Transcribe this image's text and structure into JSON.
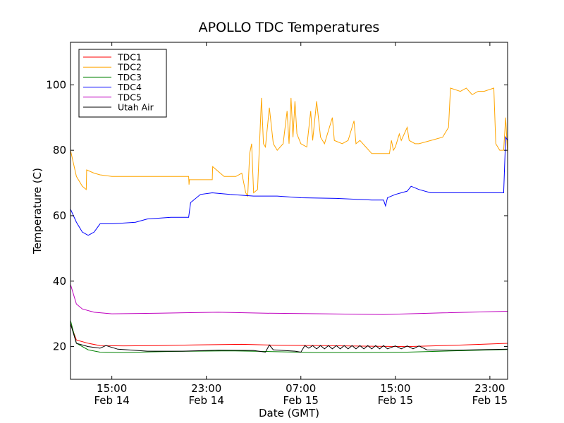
{
  "chart_data": {
    "type": "line",
    "title": "APOLLO TDC Temperatures",
    "xlabel": "Date (GMT)",
    "ylabel": "Temperature (C)",
    "x_unit": "datetime",
    "xlim": [
      "2014-02-14 11:30",
      "2014-02-16 00:30"
    ],
    "ylim": [
      10,
      113
    ],
    "yticks": [
      20,
      40,
      60,
      80,
      100
    ],
    "xticks": [
      {
        "x": "2014-02-14 15:00",
        "line1": "15:00",
        "line2": "Feb 14"
      },
      {
        "x": "2014-02-14 23:00",
        "line1": "23:00",
        "line2": "Feb 14"
      },
      {
        "x": "2014-02-15 07:00",
        "line1": "07:00",
        "line2": "Feb 15"
      },
      {
        "x": "2014-02-15 15:00",
        "line1": "15:00",
        "line2": "Feb 15"
      },
      {
        "x": "2014-02-15 23:00",
        "line1": "23:00",
        "line2": "Feb 15"
      }
    ],
    "grid": false,
    "legend_position": "top-left",
    "series": [
      {
        "name": "TDC1",
        "color": "#ff0000",
        "points": [
          [
            "2014-02-14 11:30",
            27
          ],
          [
            "2014-02-14 12:00",
            22
          ],
          [
            "2014-02-14 13:00",
            21
          ],
          [
            "2014-02-14 14:00",
            20.3
          ],
          [
            "2014-02-14 16:00",
            20.2
          ],
          [
            "2014-02-14 19:00",
            20.3
          ],
          [
            "2014-02-14 22:00",
            20.5
          ],
          [
            "2014-02-15 02:00",
            20.7
          ],
          [
            "2014-02-15 05:00",
            20.4
          ],
          [
            "2014-02-15 09:00",
            20.3
          ],
          [
            "2014-02-15 13:00",
            20.1
          ],
          [
            "2014-02-15 16:00",
            20.0
          ],
          [
            "2014-02-15 20:00",
            20.4
          ],
          [
            "2014-02-16 00:30",
            21.0
          ]
        ]
      },
      {
        "name": "TDC2",
        "color": "#ffa500",
        "points": [
          [
            "2014-02-14 11:30",
            80
          ],
          [
            "2014-02-14 12:00",
            72
          ],
          [
            "2014-02-14 12:30",
            69
          ],
          [
            "2014-02-14 12:50",
            68
          ],
          [
            "2014-02-14 12:52",
            74
          ],
          [
            "2014-02-14 13:30",
            73
          ],
          [
            "2014-02-14 14:00",
            72.5
          ],
          [
            "2014-02-14 15:00",
            72
          ],
          [
            "2014-02-14 17:00",
            72
          ],
          [
            "2014-02-14 19:00",
            72
          ],
          [
            "2014-02-14 21:30",
            72
          ],
          [
            "2014-02-14 21:32",
            69.5
          ],
          [
            "2014-02-14 21:34",
            71
          ],
          [
            "2014-02-14 23:00",
            71
          ],
          [
            "2014-02-14 23:30",
            71
          ],
          [
            "2014-02-14 23:32",
            75
          ],
          [
            "2014-02-15 00:30",
            72
          ],
          [
            "2014-02-15 01:30",
            72
          ],
          [
            "2014-02-15 02:00",
            73
          ],
          [
            "2014-02-15 02:20",
            67
          ],
          [
            "2014-02-15 02:30",
            66
          ],
          [
            "2014-02-15 02:40",
            79
          ],
          [
            "2014-02-15 02:50",
            82
          ],
          [
            "2014-02-15 03:00",
            67
          ],
          [
            "2014-02-15 03:20",
            68
          ],
          [
            "2014-02-15 03:40",
            96
          ],
          [
            "2014-02-15 03:50",
            82
          ],
          [
            "2014-02-15 04:00",
            81
          ],
          [
            "2014-02-15 04:20",
            93
          ],
          [
            "2014-02-15 04:40",
            82
          ],
          [
            "2014-02-15 05:00",
            80
          ],
          [
            "2014-02-15 05:30",
            82
          ],
          [
            "2014-02-15 05:50",
            92
          ],
          [
            "2014-02-15 06:00",
            82
          ],
          [
            "2014-02-15 06:10",
            96
          ],
          [
            "2014-02-15 06:20",
            84
          ],
          [
            "2014-02-15 06:30",
            95
          ],
          [
            "2014-02-15 06:40",
            85
          ],
          [
            "2014-02-15 07:00",
            82
          ],
          [
            "2014-02-15 07:30",
            81
          ],
          [
            "2014-02-15 07:50",
            92
          ],
          [
            "2014-02-15 08:00",
            83
          ],
          [
            "2014-02-15 08:20",
            95
          ],
          [
            "2014-02-15 08:40",
            84
          ],
          [
            "2014-02-15 09:00",
            82
          ],
          [
            "2014-02-15 09:40",
            90
          ],
          [
            "2014-02-15 09:50",
            83
          ],
          [
            "2014-02-15 10:30",
            82
          ],
          [
            "2014-02-15 11:00",
            83
          ],
          [
            "2014-02-15 11:30",
            89
          ],
          [
            "2014-02-15 11:40",
            82
          ],
          [
            "2014-02-15 12:00",
            83
          ],
          [
            "2014-02-15 12:30",
            81
          ],
          [
            "2014-02-15 13:00",
            79
          ],
          [
            "2014-02-15 14:00",
            79
          ],
          [
            "2014-02-15 14:30",
            79
          ],
          [
            "2014-02-15 14:40",
            83
          ],
          [
            "2014-02-15 14:50",
            80
          ],
          [
            "2014-02-15 15:00",
            81
          ],
          [
            "2014-02-15 15:20",
            85
          ],
          [
            "2014-02-15 15:30",
            83
          ],
          [
            "2014-02-15 16:00",
            87
          ],
          [
            "2014-02-15 16:10",
            83
          ],
          [
            "2014-02-15 16:40",
            82
          ],
          [
            "2014-02-15 17:00",
            82
          ],
          [
            "2014-02-15 18:00",
            83
          ],
          [
            "2014-02-15 19:00",
            84
          ],
          [
            "2014-02-15 19:30",
            87
          ],
          [
            "2014-02-15 19:40",
            99
          ],
          [
            "2014-02-15 20:30",
            98
          ],
          [
            "2014-02-15 21:00",
            99
          ],
          [
            "2014-02-15 21:30",
            97
          ],
          [
            "2014-02-15 22:00",
            98
          ],
          [
            "2014-02-15 22:30",
            98
          ],
          [
            "2014-02-15 23:20",
            99
          ],
          [
            "2014-02-15 23:30",
            82
          ],
          [
            "2014-02-15 23:50",
            80
          ],
          [
            "2014-02-16 00:10",
            80
          ],
          [
            "2014-02-16 00:20",
            90
          ],
          [
            "2014-02-16 00:30",
            79
          ]
        ]
      },
      {
        "name": "TDC3",
        "color": "#008000",
        "points": [
          [
            "2014-02-14 11:30",
            28
          ],
          [
            "2014-02-14 12:00",
            21
          ],
          [
            "2014-02-14 13:00",
            19
          ],
          [
            "2014-02-14 14:00",
            18.3
          ],
          [
            "2014-02-14 16:00",
            18.2
          ],
          [
            "2014-02-14 20:00",
            18.5
          ],
          [
            "2014-02-15 01:00",
            18.7
          ],
          [
            "2014-02-15 04:00",
            18.5
          ],
          [
            "2014-02-15 08:00",
            18.2
          ],
          [
            "2014-02-15 12:00",
            18.2
          ],
          [
            "2014-02-15 16:00",
            18.3
          ],
          [
            "2014-02-15 20:00",
            18.7
          ],
          [
            "2014-02-16 00:30",
            19.1
          ]
        ]
      },
      {
        "name": "TDC4",
        "color": "#0000ff",
        "points": [
          [
            "2014-02-14 11:30",
            62
          ],
          [
            "2014-02-14 12:00",
            58
          ],
          [
            "2014-02-14 12:30",
            55
          ],
          [
            "2014-02-14 13:00",
            54
          ],
          [
            "2014-02-14 13:30",
            55
          ],
          [
            "2014-02-14 14:00",
            57.5
          ],
          [
            "2014-02-14 15:00",
            57.5
          ],
          [
            "2014-02-14 17:00",
            58
          ],
          [
            "2014-02-14 18:00",
            59
          ],
          [
            "2014-02-14 20:00",
            59.5
          ],
          [
            "2014-02-14 21:30",
            59.5
          ],
          [
            "2014-02-14 21:40",
            64
          ],
          [
            "2014-02-14 22:30",
            66.5
          ],
          [
            "2014-02-14 23:30",
            67
          ],
          [
            "2014-02-15 01:00",
            66.5
          ],
          [
            "2014-02-15 03:00",
            66
          ],
          [
            "2014-02-15 05:00",
            66
          ],
          [
            "2014-02-15 07:00",
            65.5
          ],
          [
            "2014-02-15 10:00",
            65.3
          ],
          [
            "2014-02-15 13:00",
            64.8
          ],
          [
            "2014-02-15 14:00",
            64.8
          ],
          [
            "2014-02-15 14:10",
            63
          ],
          [
            "2014-02-15 14:20",
            65.5
          ],
          [
            "2014-02-15 15:00",
            66.5
          ],
          [
            "2014-02-15 16:00",
            67.5
          ],
          [
            "2014-02-15 16:20",
            69
          ],
          [
            "2014-02-15 17:00",
            68
          ],
          [
            "2014-02-15 18:00",
            67
          ],
          [
            "2014-02-15 20:00",
            67
          ],
          [
            "2014-02-15 22:00",
            67
          ],
          [
            "2014-02-16 00:10",
            67
          ],
          [
            "2014-02-16 00:20",
            84
          ],
          [
            "2014-02-16 00:30",
            83
          ]
        ]
      },
      {
        "name": "TDC5",
        "color": "#bf00bf",
        "points": [
          [
            "2014-02-14 11:30",
            39
          ],
          [
            "2014-02-14 12:00",
            33
          ],
          [
            "2014-02-14 12:30",
            31.5
          ],
          [
            "2014-02-14 13:30",
            30.5
          ],
          [
            "2014-02-14 15:00",
            30
          ],
          [
            "2014-02-14 19:00",
            30.2
          ],
          [
            "2014-02-15 00:00",
            30.5
          ],
          [
            "2014-02-15 04:00",
            30.2
          ],
          [
            "2014-02-15 09:00",
            30.0
          ],
          [
            "2014-02-15 14:00",
            29.8
          ],
          [
            "2014-02-15 19:00",
            30.3
          ],
          [
            "2014-02-16 00:30",
            30.8
          ]
        ]
      },
      {
        "name": "Utah Air",
        "color": "#000000",
        "points": [
          [
            "2014-02-14 11:30",
            27
          ],
          [
            "2014-02-14 12:00",
            21
          ],
          [
            "2014-02-14 13:00",
            20
          ],
          [
            "2014-02-14 14:00",
            19.5
          ],
          [
            "2014-02-14 14:30",
            20.3
          ],
          [
            "2014-02-14 15:30",
            19.2
          ],
          [
            "2014-02-14 18:00",
            18.6
          ],
          [
            "2014-02-14 21:00",
            18.6
          ],
          [
            "2014-02-15 00:00",
            18.9
          ],
          [
            "2014-02-15 03:00",
            18.8
          ],
          [
            "2014-02-15 04:00",
            18.3
          ],
          [
            "2014-02-15 04:20",
            20.5
          ],
          [
            "2014-02-15 04:40",
            19
          ],
          [
            "2014-02-15 06:30",
            18.6
          ],
          [
            "2014-02-15 07:00",
            18.3
          ],
          [
            "2014-02-15 07:20",
            20.3
          ],
          [
            "2014-02-15 07:40",
            19.5
          ],
          [
            "2014-02-15 08:00",
            20.3
          ],
          [
            "2014-02-15 08:20",
            19.3
          ],
          [
            "2014-02-15 08:40",
            20.3
          ],
          [
            "2014-02-15 09:00",
            19.3
          ],
          [
            "2014-02-15 09:20",
            20.3
          ],
          [
            "2014-02-15 09:40",
            19.3
          ],
          [
            "2014-02-15 10:00",
            20.3
          ],
          [
            "2014-02-15 10:20",
            19.3
          ],
          [
            "2014-02-15 10:40",
            20.3
          ],
          [
            "2014-02-15 11:00",
            19.3
          ],
          [
            "2014-02-15 11:20",
            20.3
          ],
          [
            "2014-02-15 11:40",
            19.3
          ],
          [
            "2014-02-15 12:00",
            20.3
          ],
          [
            "2014-02-15 12:20",
            19.3
          ],
          [
            "2014-02-15 12:40",
            20.3
          ],
          [
            "2014-02-15 13:00",
            19.3
          ],
          [
            "2014-02-15 13:20",
            20.3
          ],
          [
            "2014-02-15 13:40",
            19.3
          ],
          [
            "2014-02-15 14:00",
            20.3
          ],
          [
            "2014-02-15 14:20",
            19.3
          ],
          [
            "2014-02-15 15:00",
            20.2
          ],
          [
            "2014-02-15 15:30",
            19.3
          ],
          [
            "2014-02-15 16:00",
            20.2
          ],
          [
            "2014-02-15 16:30",
            19.3
          ],
          [
            "2014-02-15 17:00",
            20.2
          ],
          [
            "2014-02-15 17:40",
            19.0
          ],
          [
            "2014-02-15 20:00",
            18.9
          ],
          [
            "2014-02-16 00:30",
            19.2
          ]
        ]
      }
    ]
  }
}
